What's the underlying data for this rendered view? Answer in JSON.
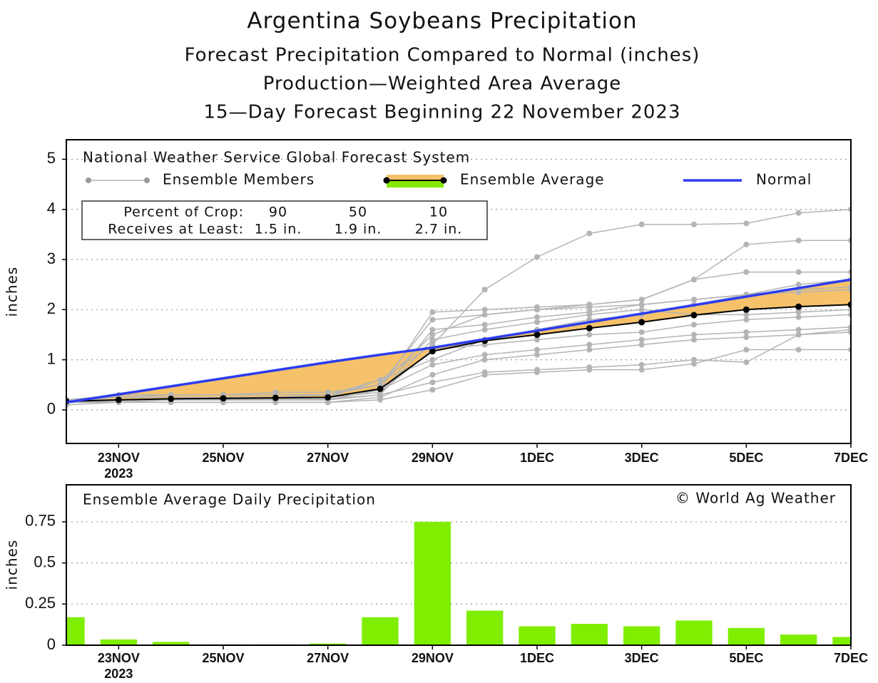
{
  "chart_data": [
    {
      "type": "line",
      "title": "Argentina Soybeans Precipitation",
      "subtitle": [
        "Forecast Precipitation Compared to Normal (inches)",
        "Production—Weighted Area Average",
        "15—Day Forecast Beginning 22 November 2023"
      ],
      "source": "National Weather Service Global Forecast System",
      "ylabel": "inches",
      "categories": [
        null,
        "23NOV",
        null,
        "25NOV",
        null,
        "27NOV",
        null,
        "29NOV",
        null,
        "1DEC",
        null,
        "3DEC",
        null,
        "5DEC",
        null,
        "7DEC"
      ],
      "year_label": "2023",
      "ylim": [
        -0.67,
        5.39
      ],
      "yticks": [
        0,
        1,
        2,
        3,
        4,
        5
      ],
      "grid": true,
      "members": {
        "name": "Ensemble Members",
        "color": "#b4b4b4",
        "series": [
          [
            0.2,
            0.25,
            0.3,
            0.3,
            0.3,
            0.3,
            0.6,
            1.3,
            2.4,
            3.05,
            3.52,
            3.7,
            3.7,
            3.72,
            3.93,
            4.0
          ],
          [
            0.2,
            0.3,
            0.3,
            0.3,
            0.35,
            0.35,
            0.5,
            1.5,
            1.9,
            2.0,
            2.1,
            2.2,
            2.6,
            3.3,
            3.38,
            3.38
          ],
          [
            0.15,
            0.2,
            0.2,
            0.2,
            0.2,
            0.2,
            0.4,
            1.95,
            2.0,
            2.05,
            2.1,
            2.2,
            2.6,
            2.75,
            2.75,
            2.75
          ],
          [
            0.15,
            0.15,
            0.15,
            0.15,
            0.15,
            0.15,
            0.2,
            0.4,
            0.7,
            0.75,
            0.8,
            0.8,
            0.92,
            1.2,
            1.2,
            1.2
          ],
          [
            0.15,
            0.15,
            0.2,
            0.2,
            0.2,
            0.2,
            0.3,
            0.55,
            0.75,
            0.8,
            0.85,
            0.9,
            1.0,
            0.95,
            1.5,
            1.6
          ],
          [
            0.2,
            0.2,
            0.2,
            0.25,
            0.25,
            0.25,
            0.6,
            1.0,
            1.4,
            1.6,
            1.8,
            1.9,
            2.1,
            2.3,
            2.5,
            2.6
          ],
          [
            0.2,
            0.2,
            0.22,
            0.22,
            0.22,
            0.25,
            0.35,
            1.2,
            1.3,
            1.4,
            1.5,
            1.55,
            1.7,
            1.8,
            1.85,
            1.9
          ],
          [
            0.15,
            0.2,
            0.2,
            0.2,
            0.2,
            0.2,
            0.3,
            1.6,
            1.7,
            1.85,
            1.95,
            2.1,
            2.2,
            2.3,
            2.4,
            2.45
          ],
          [
            0.15,
            0.18,
            0.2,
            0.2,
            0.2,
            0.2,
            0.4,
            0.9,
            1.1,
            1.2,
            1.3,
            1.4,
            1.5,
            1.55,
            1.6,
            1.65
          ],
          [
            0.2,
            0.25,
            0.25,
            0.25,
            0.25,
            0.3,
            0.5,
            1.8,
            1.9,
            2.0,
            2.05,
            2.1,
            2.2,
            2.3,
            2.35,
            2.4
          ],
          [
            0.1,
            0.15,
            0.15,
            0.15,
            0.15,
            0.15,
            0.25,
            0.7,
            1.0,
            1.1,
            1.2,
            1.3,
            1.4,
            1.45,
            1.5,
            1.55
          ],
          [
            0.15,
            0.2,
            0.2,
            0.2,
            0.2,
            0.22,
            0.3,
            1.4,
            1.6,
            1.75,
            1.9,
            2.0,
            1.9,
            1.9,
            1.95,
            2.0
          ]
        ]
      },
      "series": [
        {
          "name": "Ensemble Average",
          "color": "#000000",
          "fill_below": "#f5c26b",
          "fill_above": "#86e800",
          "values": [
            0.17,
            0.2,
            0.22,
            0.23,
            0.24,
            0.25,
            0.42,
            1.17,
            1.38,
            1.5,
            1.63,
            1.75,
            1.89,
            2.0,
            2.06,
            2.1
          ]
        },
        {
          "name": "Normal",
          "color": "#2b3cf0",
          "values": [
            0.15,
            0.31,
            0.47,
            0.63,
            0.79,
            0.95,
            1.1,
            1.24,
            1.41,
            1.58,
            1.75,
            1.92,
            2.09,
            2.26,
            2.43,
            2.6
          ]
        }
      ],
      "table": {
        "row_labels": [
          "Percent of Crop:",
          "Receives at Least:"
        ],
        "percent": [
          90,
          50,
          10
        ],
        "amounts": [
          "1.5 in.",
          "1.9 in.",
          "2.7 in."
        ]
      }
    },
    {
      "type": "bar",
      "title": "Ensemble Average Daily Precipitation",
      "credit": "© World Ag Weather",
      "ylabel": "inches",
      "categories": [
        null,
        "23NOV",
        null,
        "25NOV",
        null,
        "27NOV",
        null,
        "29NOV",
        null,
        "1DEC",
        null,
        "3DEC",
        null,
        "5DEC",
        null,
        "7DEC"
      ],
      "year_label": "2023",
      "values": [
        0.17,
        0.035,
        0.02,
        0.005,
        0.005,
        0.01,
        0.17,
        0.75,
        0.21,
        0.115,
        0.13,
        0.115,
        0.15,
        0.105,
        0.065,
        0.05
      ],
      "color": "#80ee00",
      "ylim": [
        0,
        0.975
      ],
      "yticks": [
        0,
        0.25,
        0.5,
        0.75
      ],
      "grid": true
    }
  ]
}
